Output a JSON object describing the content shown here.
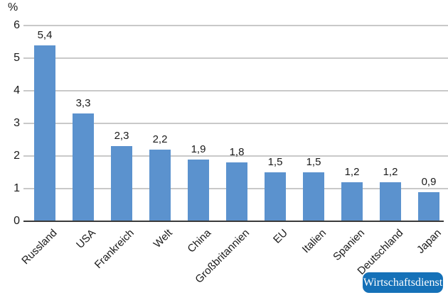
{
  "chart_data": {
    "type": "bar",
    "title": "",
    "ylabel": "%",
    "xlabel": "",
    "categories": [
      "Russland",
      "USA",
      "Frankreich",
      "Welt",
      "China",
      "Großbritannien",
      "EU",
      "Italien",
      "Spanien",
      "Deutschland",
      "Japan"
    ],
    "values": [
      5.4,
      3.3,
      2.3,
      2.2,
      1.9,
      1.8,
      1.5,
      1.5,
      1.2,
      1.2,
      0.9
    ],
    "value_labels": [
      "5,4",
      "3,3",
      "2,3",
      "2,2",
      "1,9",
      "1,8",
      "1,5",
      "1,5",
      "1,2",
      "1,2",
      "0,9"
    ],
    "yticks": [
      0,
      1,
      2,
      3,
      4,
      5,
      6
    ],
    "ylim": [
      0,
      6
    ],
    "grid": true,
    "legend": "none",
    "bar_color": "#5b92ce",
    "gridline_color": "#c9c9c9",
    "baseline_color": "#3a3a3a",
    "text_color": "#1a1a1a"
  },
  "branding": {
    "label": "Wirtschaftsdienst",
    "bg_color": "#1571b8",
    "text_color": "#ffffff"
  }
}
